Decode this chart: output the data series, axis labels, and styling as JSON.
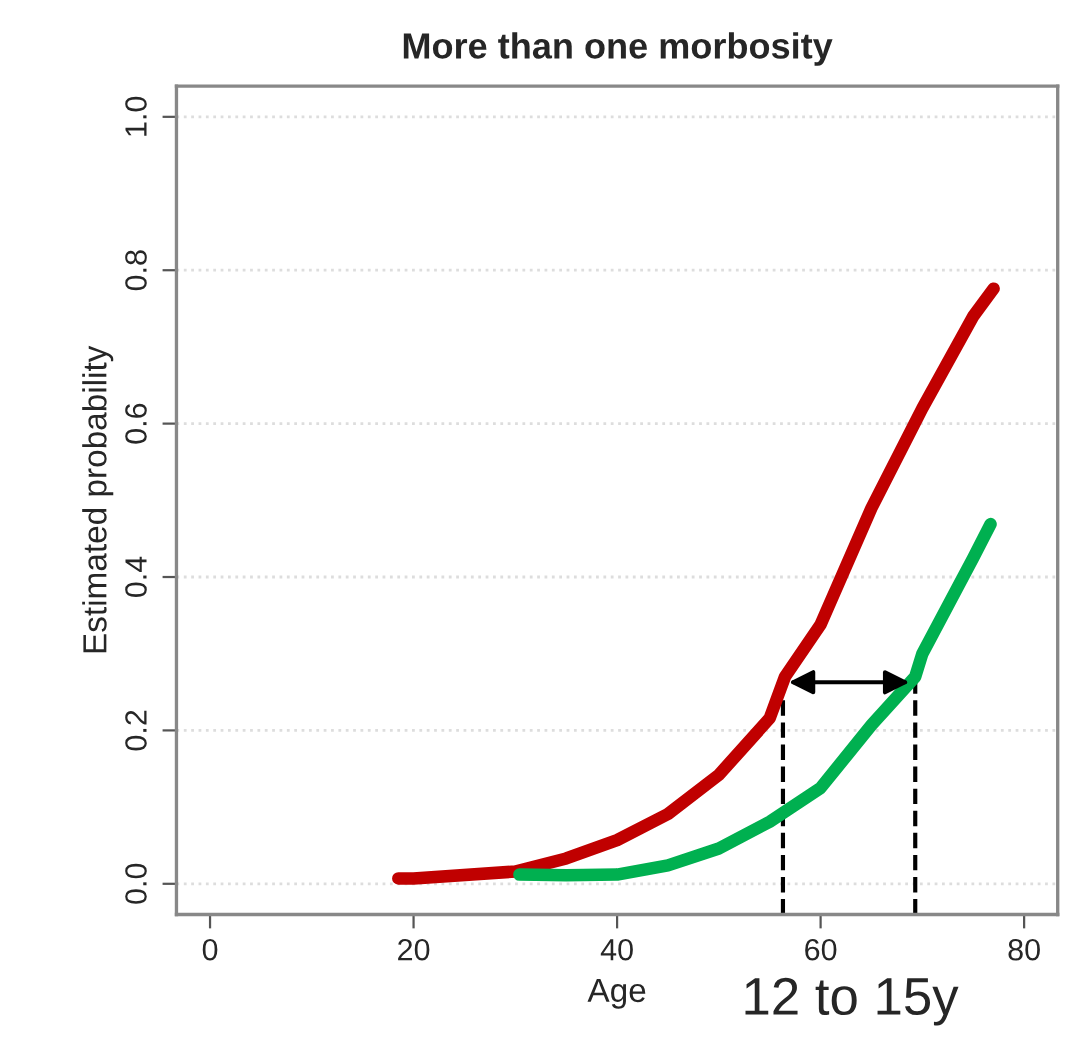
{
  "chart_data": {
    "type": "line",
    "title": "More than one morbosity",
    "xlabel": "Age",
    "ylabel": "Estimated probability",
    "series": [
      {
        "color": "#c00000",
        "x": [
          18.5,
          20,
          30,
          35,
          40,
          45,
          50,
          55,
          56.5,
          60,
          65,
          70,
          75,
          77
        ],
        "values": [
          0.007,
          0.007,
          0.016,
          0.033,
          0.057,
          0.091,
          0.142,
          0.216,
          0.27,
          0.338,
          0.49,
          0.62,
          0.74,
          0.776
        ]
      },
      {
        "color": "#00b050",
        "x": [
          30.4,
          35,
          40,
          45,
          50,
          55,
          60,
          65,
          69.3,
          70,
          75,
          76.7
        ],
        "values": [
          0.012,
          0.011,
          0.012,
          0.024,
          0.046,
          0.081,
          0.125,
          0.207,
          0.27,
          0.3,
          0.425,
          0.469
        ]
      }
    ],
    "ref_lines": [
      {
        "axis": "x",
        "value": 56.3,
        "color": "#000000",
        "line_style": "dashed"
      },
      {
        "axis": "x",
        "value": 69.3,
        "color": "#000000",
        "line_style": "dashed"
      }
    ],
    "annotations": [
      "12 to 15y"
    ],
    "xlim": [
      -3.3,
      83.3
    ],
    "ylim": [
      -0.04,
      1.04
    ],
    "xticks": [
      0,
      20,
      40,
      60,
      80
    ],
    "yticks": [
      {
        "value": 0,
        "label": "0.0"
      },
      0.2,
      0.4,
      0.6,
      0.8,
      {
        "value": 1,
        "label": "1.0"
      }
    ],
    "grid": "y",
    "marker": "none",
    "line_style": "solid"
  }
}
